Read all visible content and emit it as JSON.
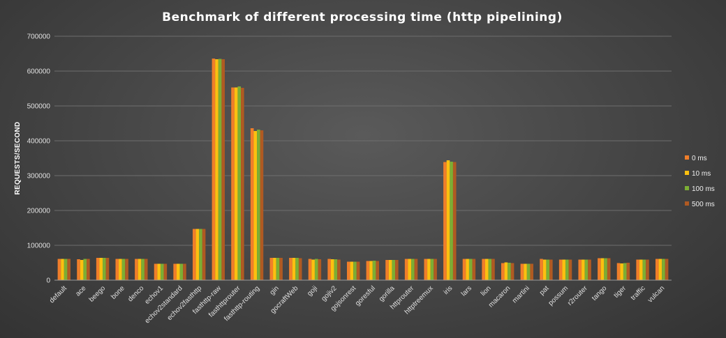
{
  "chart_data": {
    "type": "bar",
    "title": "Benchmark of different processing time (http pipelining)",
    "xlabel": "",
    "ylabel": "REQUESTS/SECOND",
    "ylim": [
      0,
      700000
    ],
    "yticks": [
      "0",
      "100000",
      "200000",
      "300000",
      "400000",
      "500000",
      "600000",
      "700000"
    ],
    "grid": true,
    "legend_position": "right",
    "categories": [
      "default",
      "ace",
      "beego",
      "bone",
      "denco",
      "echov1",
      "echov2standard",
      "echov2fasthttp",
      "fasthttp-raw",
      "fasthttprouter",
      "fasthttp-routing",
      "gin",
      "gocraftWeb",
      "goji",
      "gojiv2",
      "gojsonrest",
      "goresful",
      "gorilla",
      "httprouter",
      "httptreemux",
      "iris",
      "lars",
      "lion",
      "macaron",
      "martini",
      "pat",
      "possum",
      "r2router",
      "tango",
      "tiger",
      "traffic",
      "vulcan"
    ],
    "series": [
      {
        "name": "0 ms",
        "color": "#f07e2a",
        "values": [
          61000,
          60000,
          64000,
          61000,
          61000,
          47000,
          47000,
          147000,
          636000,
          553000,
          436000,
          64000,
          64000,
          61000,
          61000,
          53000,
          55000,
          58000,
          61000,
          61000,
          339000,
          61000,
          61000,
          49000,
          47000,
          61000,
          59000,
          59000,
          63000,
          49000,
          59000,
          61000
        ]
      },
      {
        "name": "10 ms",
        "color": "#fcc010",
        "values": [
          61000,
          58000,
          64000,
          61000,
          61000,
          47000,
          47000,
          147000,
          634000,
          553000,
          428000,
          64000,
          64000,
          59000,
          60000,
          53000,
          55000,
          58000,
          61000,
          61000,
          344000,
          61000,
          61000,
          51000,
          47000,
          59000,
          59000,
          59000,
          63000,
          48000,
          59000,
          61000
        ]
      },
      {
        "name": "100 ms",
        "color": "#7cae34",
        "values": [
          61000,
          61000,
          64000,
          61000,
          61000,
          47000,
          47000,
          147000,
          635000,
          556000,
          432000,
          64000,
          64000,
          61000,
          60000,
          53000,
          56000,
          58000,
          61000,
          61000,
          340000,
          61000,
          61000,
          50000,
          47000,
          59000,
          59000,
          59000,
          63000,
          49000,
          59000,
          61000
        ]
      },
      {
        "name": "500 ms",
        "color": "#b05a22",
        "values": [
          61000,
          61000,
          64000,
          61000,
          61000,
          47000,
          47000,
          147000,
          634000,
          552000,
          430000,
          64000,
          63000,
          60000,
          59000,
          53000,
          55000,
          58000,
          61000,
          61000,
          339000,
          61000,
          61000,
          49000,
          47000,
          59000,
          59000,
          59000,
          63000,
          50000,
          59000,
          61000
        ]
      }
    ]
  }
}
